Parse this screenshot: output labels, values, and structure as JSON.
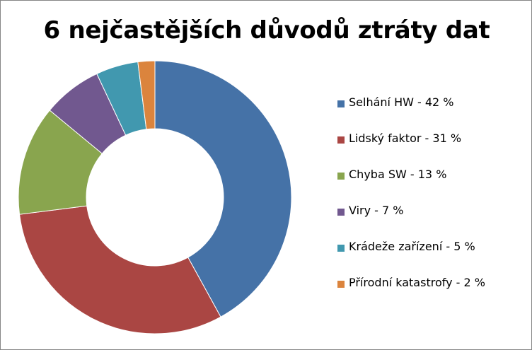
{
  "chart_data": {
    "type": "pie",
    "title": "6 nejčastějších důvodů ztráty dat",
    "legend_position": "right",
    "slices": [
      {
        "label": "Selhání HW - 42 %",
        "value": 42,
        "color": "#4572A7"
      },
      {
        "label": "Lidský faktor - 31 %",
        "value": 31,
        "color": "#AA4643"
      },
      {
        "label": "Chyba SW - 13 %",
        "value": 13,
        "color": "#89A54E"
      },
      {
        "label": "Viry - 7 %",
        "value": 7,
        "color": "#71588F"
      },
      {
        "label": "Krádeže zařízení - 5 %",
        "value": 5,
        "color": "#4198AF"
      },
      {
        "label": "Přírodní katastrofy - 2 %",
        "value": 2,
        "color": "#DB843D"
      }
    ]
  }
}
